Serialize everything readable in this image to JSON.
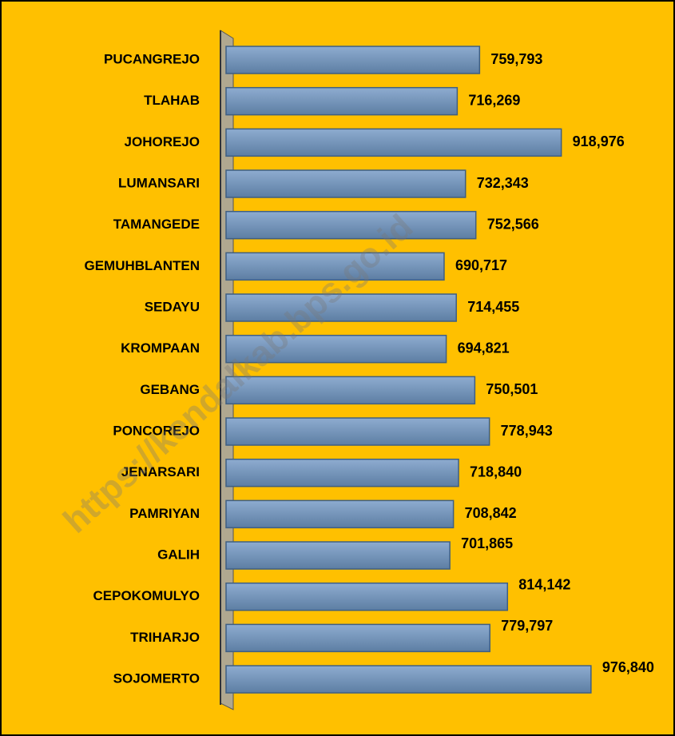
{
  "chart_data": {
    "type": "bar",
    "orientation": "horizontal",
    "categories": [
      "PUCANGREJO",
      "TLAHAB",
      "JOHOREJO",
      "LUMANSARI",
      "TAMANGEDE",
      "GEMUHBLANTEN",
      "SEDAYU",
      "KROMPAAN",
      "GEBANG",
      "PONCOREJO",
      "JENARSARI",
      "PAMRIYAN",
      "GALIH",
      "CEPOKOMULYO",
      "TRIHARJO",
      "SOJOMERTO"
    ],
    "values": [
      759793,
      716269,
      918976,
      732343,
      752566,
      690717,
      714455,
      694821,
      750501,
      778943,
      718840,
      708842,
      701865,
      814142,
      779797,
      976840
    ],
    "value_labels": [
      "759,793",
      "716,269",
      "918,976",
      "732,343",
      "752,566",
      "690,717",
      "714,455",
      "694,821",
      "750,501",
      "778,943",
      "718,840",
      "708,842",
      "701,865",
      "814,142",
      "779,797",
      "976,840"
    ],
    "color": "#6f8fb3",
    "xlim": [
      266000,
      1100000
    ],
    "watermark": "https://kendalkab.bps.go.id"
  }
}
